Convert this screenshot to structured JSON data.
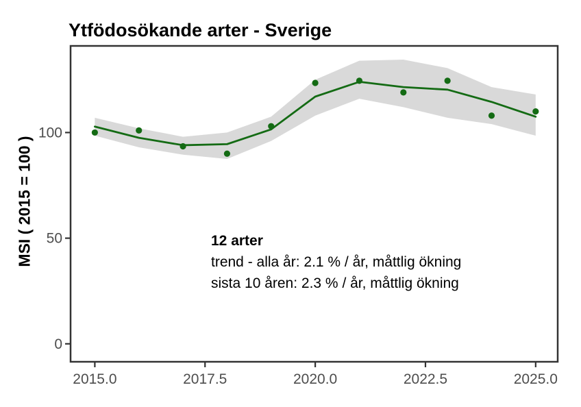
{
  "chart_data": {
    "type": "line",
    "title": "Ytfödosökande arter - Sverige",
    "ylabel": "MSI ( 2015 = 100 )",
    "xlabel": "",
    "x": [
      2015,
      2016,
      2017,
      2018,
      2019,
      2020,
      2021,
      2022,
      2023,
      2024,
      2025
    ],
    "series": [
      {
        "name": "msi_points",
        "label": "MSI yearly index (points)",
        "values": [
          100,
          101,
          93.5,
          90,
          103,
          123.5,
          124.5,
          119,
          124.5,
          108,
          110
        ]
      },
      {
        "name": "trend",
        "label": "Smoothed trend line",
        "values": [
          102.8,
          97.5,
          94,
          94.5,
          101.5,
          117,
          124,
          121.5,
          120.3,
          114.5,
          107.5
        ]
      },
      {
        "name": "ci_upper",
        "label": "Confidence band upper",
        "values": [
          107,
          102,
          98,
          100,
          107.5,
          125,
          134,
          134.5,
          130.5,
          121.5,
          118
        ]
      },
      {
        "name": "ci_lower",
        "label": "Confidence band lower",
        "values": [
          98.5,
          93,
          89.5,
          87.5,
          96,
          108,
          116,
          112,
          107,
          104,
          98.5
        ]
      }
    ],
    "xlim": [
      2014.45,
      2025.5
    ],
    "ylim": [
      -8.5,
      141
    ],
    "x_ticks": [
      {
        "value": 2015.0,
        "label": "2015.0"
      },
      {
        "value": 2017.5,
        "label": "2017.5"
      },
      {
        "value": 2020.0,
        "label": "2020.0"
      },
      {
        "value": 2022.5,
        "label": "2022.5"
      },
      {
        "value": 2025.0,
        "label": "2025.0"
      }
    ],
    "y_ticks": [
      {
        "value": 0,
        "label": "0"
      },
      {
        "value": 50,
        "label": "50"
      },
      {
        "value": 100,
        "label": "100"
      }
    ],
    "grid": false,
    "legend": "none",
    "colors": {
      "line": "#146b14",
      "point": "#146b14",
      "band": "#d9d9d9",
      "axis_text": "#4d4d4d",
      "axis_line": "#333333",
      "text": "#000000"
    }
  },
  "annotation": {
    "species_count": "12 arter",
    "trend_all_years": "trend - alla år: 2.1 % / år, måttlig ökning",
    "trend_last_10_years": "sista 10 åren: 2.3 % / år, måttlig ökning"
  }
}
